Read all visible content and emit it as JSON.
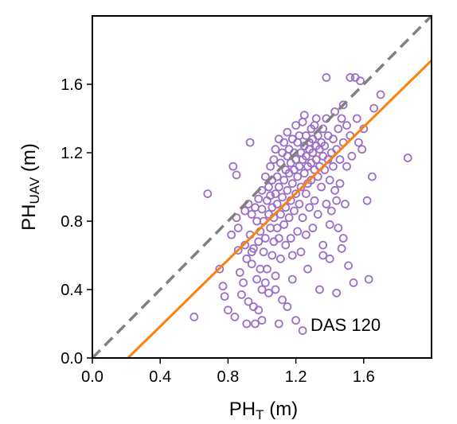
{
  "chart_data": {
    "type": "scatter",
    "title": "",
    "xlabel": "PH",
    "xlabel_sub": "T",
    "xlabel_unit": " (m)",
    "ylabel": "PH",
    "ylabel_sub": "UAV",
    "ylabel_unit": " (m)",
    "xlim": [
      0.0,
      2.0
    ],
    "ylim": [
      0.0,
      2.0
    ],
    "xticks": [
      "0.0",
      "0.4",
      "0.8",
      "1.2",
      "1.6"
    ],
    "yticks": [
      "0.0",
      "0.4",
      "0.8",
      "1.2",
      "1.6"
    ],
    "grid": false,
    "annotation": "DAS 120",
    "point_color": "#9b6fc8",
    "one_to_one_line": {
      "from": [
        0.0,
        0.0
      ],
      "to": [
        2.0,
        2.0
      ],
      "color": "#808080",
      "style": "dashed"
    },
    "fit_line": {
      "from": [
        0.21,
        0.0
      ],
      "to": [
        2.0,
        1.74
      ],
      "color": "#ff7f0e",
      "style": "solid"
    },
    "series": [
      {
        "points": [
          [
            0.6,
            0.24
          ],
          [
            0.68,
            0.96
          ],
          [
            0.75,
            0.52
          ],
          [
            0.77,
            0.42
          ],
          [
            0.78,
            0.36
          ],
          [
            0.8,
            0.28
          ],
          [
            0.82,
            0.72
          ],
          [
            0.84,
            0.24
          ],
          [
            0.83,
            1.12
          ],
          [
            0.85,
            1.07
          ],
          [
            0.85,
            0.82
          ],
          [
            0.86,
            0.76
          ],
          [
            0.86,
            0.63
          ],
          [
            0.87,
            0.5
          ],
          [
            0.88,
            0.37
          ],
          [
            0.89,
            0.44
          ],
          [
            0.9,
            0.86
          ],
          [
            0.9,
            0.66
          ],
          [
            0.91,
            0.58
          ],
          [
            0.91,
            0.2
          ],
          [
            0.92,
            0.33
          ],
          [
            0.92,
            0.9
          ],
          [
            0.93,
            1.26
          ],
          [
            0.93,
            0.72
          ],
          [
            0.94,
            0.84
          ],
          [
            0.94,
            0.55
          ],
          [
            0.95,
            0.3
          ],
          [
            0.95,
            0.64
          ],
          [
            0.96,
            0.88
          ],
          [
            0.96,
            0.2
          ],
          [
            0.97,
            0.8
          ],
          [
            0.97,
            0.46
          ],
          [
            0.98,
            0.68
          ],
          [
            0.98,
            0.93
          ],
          [
            0.99,
            0.74
          ],
          [
            0.99,
            0.52
          ],
          [
            1.0,
            0.87
          ],
          [
            1.0,
            0.4
          ],
          [
            1.0,
            0.98
          ],
          [
            1.01,
            0.62
          ],
          [
            1.01,
            0.8
          ],
          [
            1.02,
            1.06
          ],
          [
            1.02,
            0.7
          ],
          [
            1.03,
            0.92
          ],
          [
            1.03,
            0.52
          ],
          [
            1.04,
            0.84
          ],
          [
            1.04,
            1.0
          ],
          [
            1.04,
            0.38
          ],
          [
            1.05,
            0.76
          ],
          [
            1.05,
            0.95
          ],
          [
            1.05,
            1.12
          ],
          [
            1.06,
            0.6
          ],
          [
            1.06,
            0.88
          ],
          [
            1.06,
            1.04
          ],
          [
            1.07,
            0.68
          ],
          [
            1.07,
            0.82
          ],
          [
            1.07,
            1.16
          ],
          [
            1.08,
            0.96
          ],
          [
            1.08,
            0.48
          ],
          [
            1.08,
            1.22
          ],
          [
            1.09,
            0.76
          ],
          [
            1.09,
            1.06
          ],
          [
            1.09,
            0.9
          ],
          [
            1.1,
            1.28
          ],
          [
            1.1,
            0.7
          ],
          [
            1.1,
            1.0
          ],
          [
            1.11,
            0.84
          ],
          [
            1.11,
            1.14
          ],
          [
            1.11,
            0.58
          ],
          [
            1.12,
            1.2
          ],
          [
            1.12,
            0.94
          ],
          [
            1.12,
            0.34
          ],
          [
            1.13,
            1.04
          ],
          [
            1.13,
            0.78
          ],
          [
            1.13,
            1.26
          ],
          [
            1.14,
            0.88
          ],
          [
            1.14,
            1.1
          ],
          [
            1.14,
            0.66
          ],
          [
            1.15,
            1.18
          ],
          [
            1.15,
            0.98
          ],
          [
            1.15,
            1.32
          ],
          [
            1.16,
            0.82
          ],
          [
            1.16,
            1.08
          ],
          [
            1.16,
            1.22
          ],
          [
            1.17,
            0.92
          ],
          [
            1.17,
            1.14
          ],
          [
            1.17,
            0.7
          ],
          [
            1.18,
            1.02
          ],
          [
            1.18,
            1.28
          ],
          [
            1.18,
            0.46
          ],
          [
            1.19,
            1.1
          ],
          [
            1.19,
            0.86
          ],
          [
            1.19,
            1.2
          ],
          [
            1.2,
            1.36
          ],
          [
            1.2,
            0.96
          ],
          [
            1.2,
            1.16
          ],
          [
            1.21,
            1.06
          ],
          [
            1.21,
            1.26
          ],
          [
            1.21,
            0.74
          ],
          [
            1.22,
            1.12
          ],
          [
            1.22,
            0.9
          ],
          [
            1.22,
            1.3
          ],
          [
            1.23,
            1.2
          ],
          [
            1.23,
            1.0
          ],
          [
            1.23,
            0.62
          ],
          [
            1.24,
            1.16
          ],
          [
            1.24,
            1.38
          ],
          [
            1.24,
            0.82
          ],
          [
            1.25,
            1.24
          ],
          [
            1.25,
            1.08
          ],
          [
            1.25,
            1.42
          ],
          [
            1.26,
            0.96
          ],
          [
            1.26,
            1.18
          ],
          [
            1.26,
            1.3
          ],
          [
            1.27,
            1.12
          ],
          [
            1.27,
            1.02
          ],
          [
            1.27,
            0.52
          ],
          [
            1.28,
            1.26
          ],
          [
            1.28,
            1.22
          ],
          [
            1.28,
            0.88
          ],
          [
            1.29,
            1.34
          ],
          [
            1.29,
            1.14
          ],
          [
            1.29,
            1.04
          ],
          [
            1.3,
            1.28
          ],
          [
            1.3,
            1.2
          ],
          [
            1.3,
            0.76
          ],
          [
            1.31,
            1.1
          ],
          [
            1.31,
            1.36
          ],
          [
            1.31,
            0.92
          ],
          [
            1.32,
            1.24
          ],
          [
            1.32,
            1.16
          ],
          [
            1.32,
            1.4
          ],
          [
            1.33,
            1.06
          ],
          [
            1.33,
            1.3
          ],
          [
            1.33,
            0.84
          ],
          [
            1.34,
            1.22
          ],
          [
            1.34,
            1.12
          ],
          [
            1.34,
            0.4
          ],
          [
            1.35,
            1.26
          ],
          [
            1.35,
            1.0
          ],
          [
            1.36,
            1.18
          ],
          [
            1.36,
            1.34
          ],
          [
            1.36,
            0.66
          ],
          [
            1.37,
            1.1
          ],
          [
            1.37,
            1.24
          ],
          [
            1.38,
            0.9
          ],
          [
            1.38,
            1.4
          ],
          [
            1.38,
            1.64
          ],
          [
            1.39,
            1.16
          ],
          [
            1.39,
            1.3
          ],
          [
            1.4,
            1.04
          ],
          [
            1.4,
            0.58
          ],
          [
            1.41,
            1.2
          ],
          [
            1.41,
            0.86
          ],
          [
            1.42,
            1.28
          ],
          [
            1.42,
            1.12
          ],
          [
            1.43,
            0.98
          ],
          [
            1.43,
            1.44
          ],
          [
            1.44,
            1.22
          ],
          [
            1.44,
            0.38
          ],
          [
            1.45,
            1.34
          ],
          [
            1.45,
            0.76
          ],
          [
            1.46,
            1.16
          ],
          [
            1.46,
            1.02
          ],
          [
            1.47,
            1.4
          ],
          [
            1.47,
            0.64
          ],
          [
            1.48,
            1.26
          ],
          [
            1.48,
            1.48
          ],
          [
            1.49,
            0.9
          ],
          [
            1.5,
            1.36
          ],
          [
            1.5,
            1.12
          ],
          [
            1.51,
            0.54
          ],
          [
            1.52,
            1.3
          ],
          [
            1.52,
            1.64
          ],
          [
            1.53,
            1.18
          ],
          [
            1.54,
            0.44
          ],
          [
            1.55,
            1.64
          ],
          [
            1.56,
            1.4
          ],
          [
            1.57,
            1.26
          ],
          [
            1.58,
            1.62
          ],
          [
            1.59,
            1.22
          ],
          [
            1.6,
            1.34
          ],
          [
            1.62,
            0.92
          ],
          [
            1.63,
            0.46
          ],
          [
            1.65,
            1.06
          ],
          [
            1.66,
            1.46
          ],
          [
            1.7,
            1.54
          ],
          [
            1.86,
            1.17
          ],
          [
            1.24,
            0.16
          ],
          [
            1.2,
            0.22
          ],
          [
            1.15,
            0.3
          ],
          [
            1.1,
            0.2
          ],
          [
            1.02,
            0.44
          ],
          [
            0.98,
            0.28
          ],
          [
            0.94,
            0.62
          ],
          [
            1.36,
            0.6
          ],
          [
            1.4,
            0.78
          ],
          [
            1.44,
            0.92
          ],
          [
            1.48,
            0.7
          ],
          [
            1.26,
            0.72
          ],
          [
            1.18,
            0.6
          ],
          [
            1.08,
            0.4
          ],
          [
            1.0,
            0.22
          ]
        ]
      }
    ]
  }
}
